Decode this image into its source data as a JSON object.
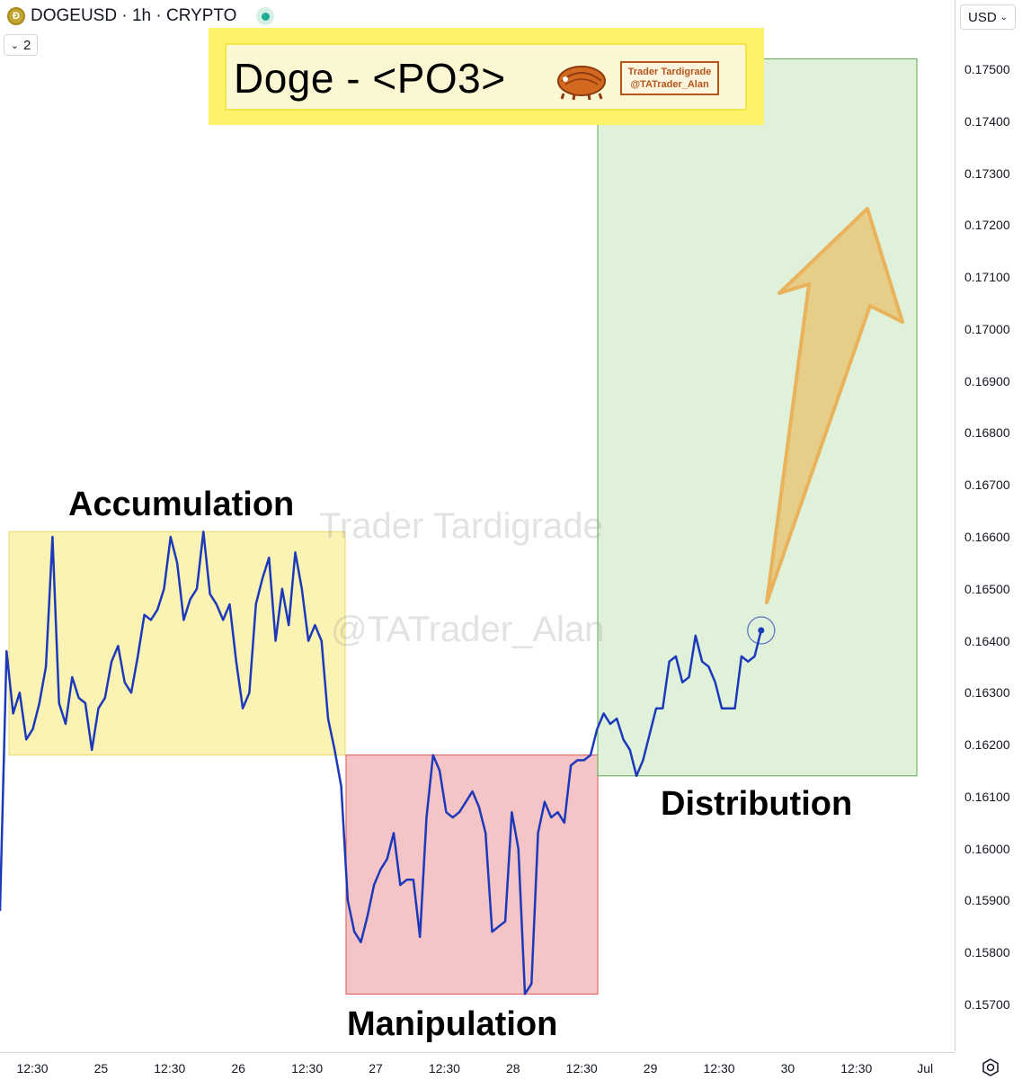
{
  "header": {
    "symbol": "DOGEUSD · 1h · CRYPTO",
    "collapse_count": "2",
    "currency": "USD"
  },
  "title_banner": {
    "title": "Doge - <PO3>",
    "logo_line1": "Trader Tardigrade",
    "logo_line2": "@TATrader_Alan"
  },
  "watermark": {
    "line1": "Trader Tardigrade",
    "line2": "@TATrader_Alan"
  },
  "phases": {
    "accumulation": "Accumulation",
    "manipulation": "Manipulation",
    "distribution": "Distribution"
  },
  "price_axis": [
    "0.17500",
    "0.17400",
    "0.17300",
    "0.17200",
    "0.17100",
    "0.17000",
    "0.16900",
    "0.16800",
    "0.16700",
    "0.16600",
    "0.16500",
    "0.16400",
    "0.16300",
    "0.16200",
    "0.16100",
    "0.16000",
    "0.15900",
    "0.15800",
    "0.15700"
  ],
  "time_axis": [
    "12:30",
    "25",
    "12:30",
    "26",
    "12:30",
    "27",
    "12:30",
    "28",
    "12:30",
    "29",
    "12:30",
    "30",
    "12:30",
    "Jul"
  ],
  "colors": {
    "line": "#1c39bb",
    "accumulation_fill": "#fbf3b4",
    "manipulation_fill": "#f5c4c6",
    "distribution_fill": "#dff1d9",
    "arrow_fill": "#e8c87a"
  },
  "chart_data": {
    "type": "line",
    "title": "Doge - <PO3>",
    "xlabel": "",
    "ylabel": "",
    "ylim": [
      0.1565,
      0.176
    ],
    "y_ticks": [
      0.175,
      0.174,
      0.173,
      0.172,
      0.171,
      0.17,
      0.169,
      0.168,
      0.167,
      0.166,
      0.165,
      0.164,
      0.163,
      0.162,
      0.161,
      0.16,
      0.159,
      0.158,
      0.157
    ],
    "x_tick_labels": [
      "12:30",
      "25",
      "12:30",
      "26",
      "12:30",
      "27",
      "12:30",
      "28",
      "12:30",
      "29",
      "12:30",
      "30",
      "12:30",
      "Jul"
    ],
    "series": [
      {
        "values": [
          0.1588,
          0.1638,
          0.1626,
          0.163,
          0.1621,
          0.1623,
          0.1628,
          0.1635,
          0.166,
          0.1628,
          0.1624,
          0.1633,
          0.1629,
          0.1628,
          0.1619,
          0.1627,
          0.1629,
          0.1636,
          0.1639,
          0.1632,
          0.163,
          0.1637,
          0.1645,
          0.1644,
          0.1646,
          0.165,
          0.166,
          0.1655,
          0.1644,
          0.1648,
          0.165,
          0.1661,
          0.1649,
          0.1647,
          0.1644,
          0.1647,
          0.1636,
          0.1627,
          0.163,
          0.1647,
          0.1652,
          0.1656,
          0.164,
          0.165,
          0.1643,
          0.1657,
          0.165,
          0.164,
          0.1643,
          0.164,
          0.1625,
          0.1619,
          0.1612,
          0.159,
          0.1584,
          0.1582,
          0.1587,
          0.1593,
          0.1596,
          0.1598,
          0.1603,
          0.1593,
          0.1594,
          0.1594,
          0.1583,
          0.1606,
          0.1618,
          0.1615,
          0.1607,
          0.1606,
          0.1607,
          0.1609,
          0.1611,
          0.1608,
          0.1603,
          0.1584,
          0.1585,
          0.1586,
          0.1607,
          0.16,
          0.1572,
          0.1574,
          0.1603,
          0.1609,
          0.1606,
          0.1607,
          0.1605,
          0.1616,
          0.1617,
          0.1617,
          0.1618,
          0.1623,
          0.1626,
          0.1624,
          0.1625,
          0.1621,
          0.1619,
          0.1614,
          0.1617,
          0.1622,
          0.1627,
          0.1627,
          0.1636,
          0.1637,
          0.1632,
          0.1633,
          0.1641,
          0.1636,
          0.1635,
          0.1632,
          0.1627,
          0.1627,
          0.1627,
          0.1637,
          0.1636,
          0.1637,
          0.1642
        ],
        "phase_ranges": {
          "accumulation": [
            0.1618,
            0.1661
          ],
          "manipulation": [
            0.1572,
            0.1618
          ],
          "distribution": [
            0.1614,
            0.1752
          ]
        }
      }
    ],
    "annotations": [
      "Accumulation",
      "Manipulation",
      "Distribution"
    ],
    "grid": false
  }
}
